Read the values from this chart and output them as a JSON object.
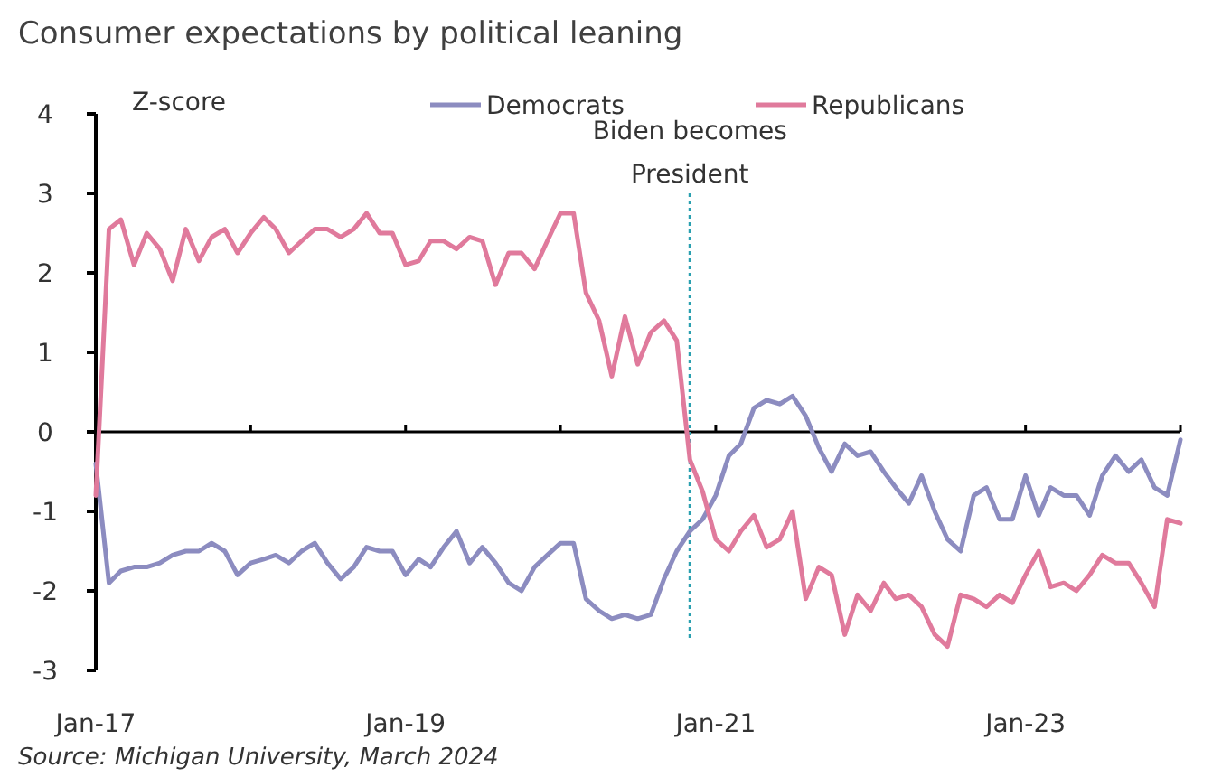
{
  "chart_data": {
    "type": "line",
    "title": "Consumer expectations by political leaning",
    "ylabel": "Z-score",
    "annotations": [
      "Source: Michigan University, March 2024"
    ],
    "x": [
      "2017-01",
      "2017-02",
      "2017-03",
      "2017-04",
      "2017-05",
      "2017-06",
      "2017-07",
      "2017-08",
      "2017-09",
      "2017-10",
      "2017-11",
      "2017-12",
      "2018-01",
      "2018-02",
      "2018-03",
      "2018-04",
      "2018-05",
      "2018-06",
      "2018-07",
      "2018-08",
      "2018-09",
      "2018-10",
      "2018-11",
      "2018-12",
      "2019-01",
      "2019-02",
      "2019-03",
      "2019-04",
      "2019-05",
      "2019-06",
      "2019-07",
      "2019-08",
      "2019-09",
      "2019-10",
      "2019-11",
      "2019-12",
      "2020-01",
      "2020-02",
      "2020-03",
      "2020-04",
      "2020-05",
      "2020-06",
      "2020-07",
      "2020-08",
      "2020-09",
      "2020-10",
      "2020-11",
      "2020-12",
      "2021-01",
      "2021-02",
      "2021-03",
      "2021-04",
      "2021-05",
      "2021-06",
      "2021-07",
      "2021-08",
      "2021-09",
      "2021-10",
      "2021-11",
      "2021-12",
      "2022-01",
      "2022-02",
      "2022-03",
      "2022-04",
      "2022-05",
      "2022-06",
      "2022-07",
      "2022-08",
      "2022-09",
      "2022-10",
      "2022-11",
      "2022-12",
      "2023-01",
      "2023-02",
      "2023-03",
      "2023-04",
      "2023-05",
      "2023-06",
      "2023-07",
      "2023-08",
      "2023-09",
      "2023-10",
      "2023-11",
      "2023-12",
      "2024-01"
    ],
    "series": [
      {
        "name": "Democrats",
        "color": "#8c8cc0",
        "values": [
          -0.4,
          -1.9,
          -1.75,
          -1.7,
          -1.7,
          -1.65,
          -1.55,
          -1.5,
          -1.5,
          -1.4,
          -1.5,
          -1.8,
          -1.65,
          -1.6,
          -1.55,
          -1.65,
          -1.5,
          -1.4,
          -1.65,
          -1.85,
          -1.7,
          -1.45,
          -1.5,
          -1.5,
          -1.8,
          -1.6,
          -1.7,
          -1.45,
          -1.25,
          -1.65,
          -1.45,
          -1.65,
          -1.9,
          -2.0,
          -1.7,
          -1.55,
          -1.4,
          -1.4,
          -2.1,
          -2.25,
          -2.35,
          -2.3,
          -2.35,
          -2.3,
          -1.85,
          -1.5,
          -1.25,
          -1.1,
          -0.8,
          -0.3,
          -0.15,
          0.3,
          0.4,
          0.35,
          0.45,
          0.2,
          -0.2,
          -0.5,
          -0.15,
          -0.3,
          -0.25,
          -0.5,
          -0.7,
          -0.9,
          -0.55,
          -1.0,
          -1.35,
          -1.5,
          -0.8,
          -0.7,
          -1.1,
          -1.1,
          -0.55,
          -1.05,
          -0.7,
          -0.8,
          -0.8,
          -1.05,
          -0.55,
          -0.3,
          -0.5,
          -0.35,
          -0.7,
          -0.8,
          -0.1
        ]
      },
      {
        "name": "Republicans",
        "color": "#e07a9c",
        "values": [
          -0.8,
          2.55,
          2.67,
          2.1,
          2.5,
          2.3,
          1.9,
          2.55,
          2.15,
          2.45,
          2.55,
          2.25,
          2.5,
          2.7,
          2.55,
          2.25,
          2.4,
          2.55,
          2.55,
          2.45,
          2.55,
          2.75,
          2.5,
          2.5,
          2.1,
          2.15,
          2.4,
          2.4,
          2.3,
          2.45,
          2.4,
          1.85,
          2.25,
          2.25,
          2.05,
          2.4,
          2.75,
          2.75,
          1.75,
          1.4,
          0.7,
          1.45,
          0.85,
          1.25,
          1.4,
          1.15,
          -0.35,
          -0.75,
          -1.35,
          -1.5,
          -1.25,
          -1.05,
          -1.45,
          -1.35,
          -1.0,
          -2.1,
          -1.7,
          -1.8,
          -2.55,
          -2.05,
          -2.25,
          -1.9,
          -2.1,
          -2.05,
          -2.2,
          -2.55,
          -2.7,
          -2.05,
          -2.1,
          -2.2,
          -2.05,
          -2.15,
          -1.8,
          -1.5,
          -1.95,
          -1.9,
          -2.0,
          -1.8,
          -1.55,
          -1.65,
          -1.65,
          -1.9,
          -2.2,
          -1.1,
          -1.15
        ]
      }
    ],
    "xlim": [
      "2017-01",
      "2024-01"
    ],
    "xticks": [
      {
        "value": "2017-01",
        "label": "Jan-17"
      },
      {
        "value": "2018-01",
        "label": null
      },
      {
        "value": "2019-01",
        "label": "Jan-19"
      },
      {
        "value": "2020-01",
        "label": null
      },
      {
        "value": "2021-01",
        "label": "Jan-21"
      },
      {
        "value": "2022-01",
        "label": null
      },
      {
        "value": "2023-01",
        "label": "Jan-23"
      },
      {
        "value": "2024-01",
        "label": null
      }
    ],
    "ylim": [
      -3,
      4
    ],
    "yticks": [
      -3,
      -2,
      -1,
      0,
      1,
      2,
      3,
      4
    ],
    "ref_lines": [
      {
        "axis": "x",
        "value": "2020-11",
        "label": "Biden becomes President",
        "color": "#2aa0b0",
        "line_style": "dotted"
      }
    ],
    "legend": "top",
    "marker": "none",
    "line_style": "solid"
  }
}
